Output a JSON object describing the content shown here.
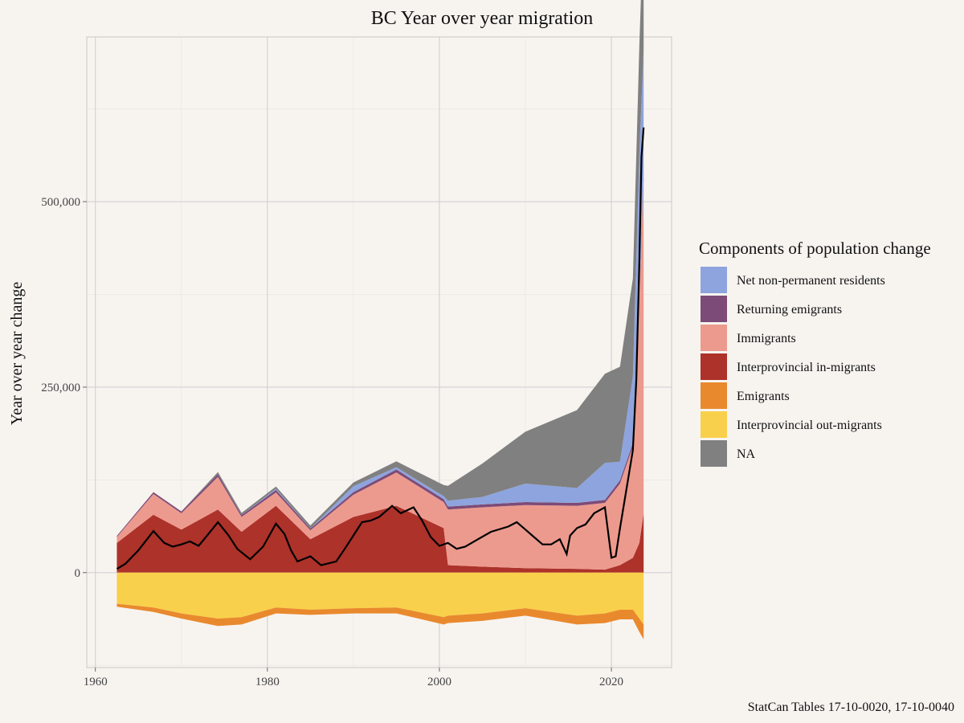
{
  "chart_data": {
    "type": "area",
    "title": "BC Year over year migration",
    "ylabel": "Year over year change",
    "xlabel": "",
    "caption": "StatCan Tables 17-10-0020, 17-10-0040",
    "xlim": [
      1959,
      2027
    ],
    "ylim": [
      -128000,
      722000
    ],
    "x_ticks": [
      1960,
      1980,
      2000,
      2020
    ],
    "x_tick_labels": [
      "1960",
      "1980",
      "2000",
      "2020"
    ],
    "y_ticks": [
      0,
      250000,
      500000
    ],
    "y_tick_labels": [
      "0",
      "250,000",
      "500,000"
    ],
    "grid": true,
    "legend": {
      "title": "Components of population change",
      "position": "right",
      "entries": [
        {
          "label": "Net non-permanent residents",
          "color": "#8ea4de"
        },
        {
          "label": "Returning emigrants",
          "color": "#7d4b77"
        },
        {
          "label": "Immigrants",
          "color": "#ec9a8e"
        },
        {
          "label": "Interprovincial in-migrants",
          "color": "#ad322a"
        },
        {
          "label": "Emigrants",
          "color": "#e9892e"
        },
        {
          "label": "Interprovincial out-migrants",
          "color": "#f9d04b"
        },
        {
          "label": "NA",
          "color": "#808080"
        }
      ]
    },
    "x": [
      1962.5,
      1966.75,
      1970,
      1974.25,
      1977,
      1981,
      1985,
      1990,
      1995,
      2000.5,
      2001,
      2005,
      2010,
      2016,
      2019.25,
      2021,
      2022.5,
      2023.25,
      2023.75
    ],
    "stacked_positive": [
      {
        "name": "Interprovincial in-migrants",
        "color": "#ad322a",
        "values": [
          40000,
          78000,
          58000,
          85000,
          55000,
          90000,
          45000,
          75000,
          90000,
          60000,
          10000,
          8000,
          6000,
          5000,
          4000,
          10000,
          20000,
          40000,
          80000
        ]
      },
      {
        "name": "Immigrants",
        "color": "#ec9a8e",
        "values": [
          8000,
          28000,
          22000,
          44000,
          20000,
          18000,
          12000,
          30000,
          45000,
          35000,
          75000,
          80000,
          85000,
          85000,
          90000,
          110000,
          150000,
          330000,
          450000
        ]
      },
      {
        "name": "Returning emigrants",
        "color": "#7d4b77",
        "values": [
          1500,
          2500,
          2500,
          3500,
          2500,
          3500,
          2500,
          3500,
          4000,
          4000,
          4000,
          4000,
          4000,
          4000,
          4000,
          4500,
          4500,
          5000,
          5000
        ]
      },
      {
        "name": "Net non-permanent residents",
        "color": "#8ea4de",
        "values": [
          0,
          0,
          0,
          0,
          0,
          1500,
          0,
          8000,
          3000,
          4000,
          8000,
          10000,
          25000,
          20000,
          50000,
          25000,
          90000,
          190000,
          170000
        ]
      },
      {
        "name": "NA",
        "color": "#808080",
        "values": [
          0,
          0,
          0,
          3000,
          3000,
          3000,
          4000,
          5000,
          8000,
          15000,
          20000,
          45000,
          70000,
          105000,
          120000,
          128000,
          132000,
          145000,
          180000
        ]
      }
    ],
    "stacked_negative": [
      {
        "name": "Interprovincial out-migrants",
        "color": "#f9d04b",
        "values": [
          -42000,
          -47000,
          -55000,
          -62000,
          -60000,
          -47000,
          -50000,
          -48000,
          -47000,
          -60000,
          -58000,
          -55000,
          -48000,
          -58000,
          -55000,
          -50000,
          -50000,
          -62000,
          -70000
        ]
      },
      {
        "name": "Emigrants",
        "color": "#e9892e",
        "values": [
          -4000,
          -6000,
          -7000,
          -10000,
          -10000,
          -8000,
          -7000,
          -7000,
          -8000,
          -10000,
          -10000,
          -10000,
          -10000,
          -12000,
          -13000,
          -13000,
          -13000,
          -18000,
          -20000
        ]
      }
    ],
    "net_line": {
      "x": [
        1962.5,
        1963.5,
        1965,
        1966.75,
        1968,
        1969,
        1970,
        1971,
        1972,
        1973,
        1974.25,
        1975.5,
        1976.5,
        1978,
        1979.5,
        1981,
        1982,
        1982.75,
        1983.5,
        1985,
        1986.25,
        1988,
        1989,
        1990,
        1991,
        1992,
        1993,
        1994.5,
        1995.5,
        1997,
        1998,
        1999,
        2000,
        2001,
        2002,
        2003,
        2004.5,
        2006,
        2008,
        2009,
        2010,
        2011,
        2012,
        2013,
        2014,
        2014.8,
        2015.2,
        2016,
        2017,
        2018,
        2019.25,
        2020,
        2020.5,
        2021,
        2022,
        2022.5,
        2022.9,
        2023.25,
        2023.5,
        2023.75
      ],
      "values": [
        5000,
        12000,
        30000,
        56000,
        40000,
        35000,
        38000,
        42000,
        36000,
        50000,
        68000,
        50000,
        32000,
        18000,
        35000,
        66000,
        52000,
        30000,
        15000,
        22000,
        10000,
        15000,
        32000,
        50000,
        68000,
        70000,
        75000,
        90000,
        80000,
        88000,
        70000,
        48000,
        36000,
        40000,
        32000,
        35000,
        45000,
        55000,
        62000,
        68000,
        58000,
        48000,
        38000,
        38000,
        45000,
        25000,
        50000,
        60000,
        65000,
        80000,
        88000,
        20000,
        22000,
        60000,
        130000,
        165000,
        260000,
        420000,
        560000,
        600000
      ]
    }
  }
}
